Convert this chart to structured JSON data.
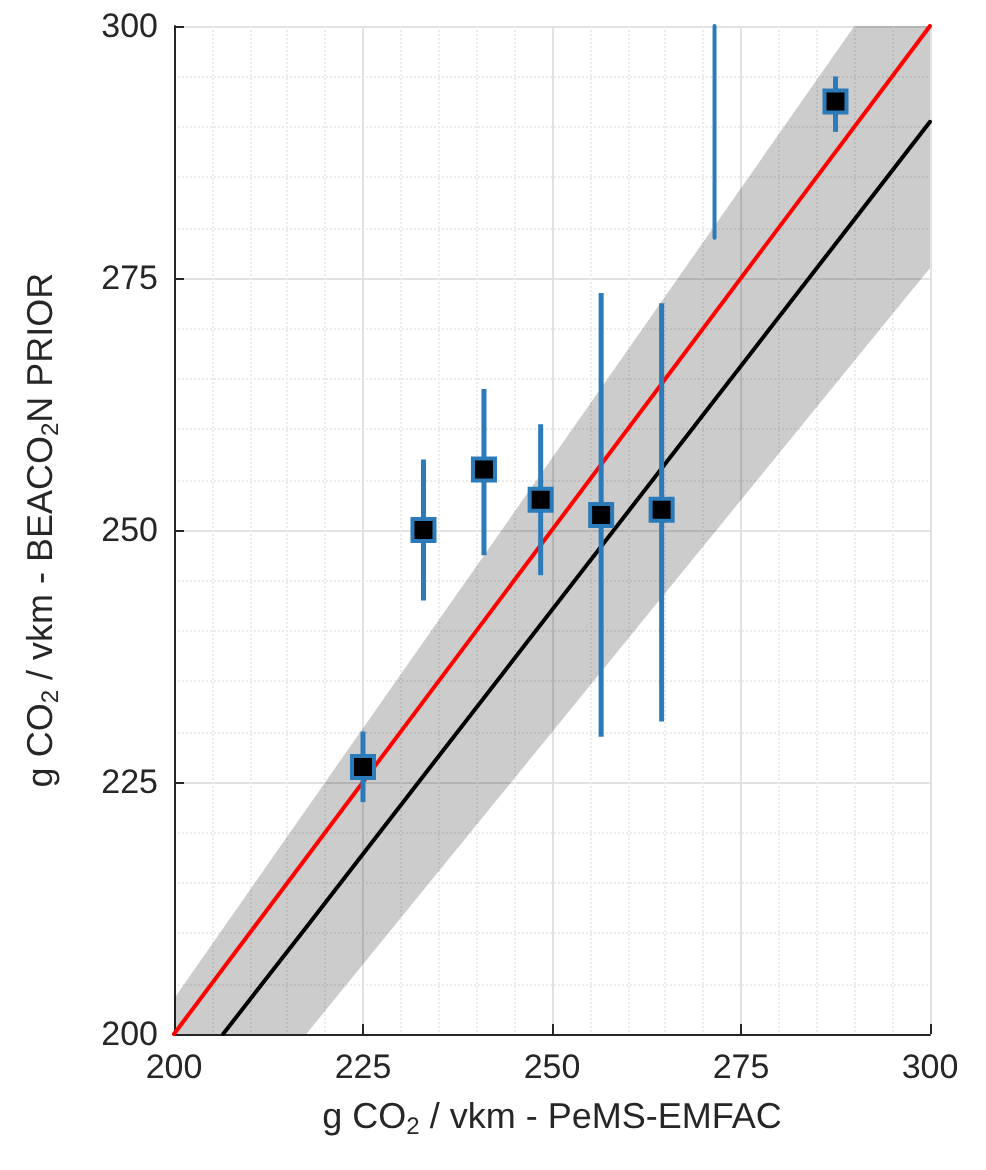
{
  "chart_data": {
    "type": "scatter",
    "xlabel": "g CO$_{2}$ / vkm - PeMS-EMFAC",
    "ylabel": "g CO$_{2}$ / vkm - BEACO$_{2}$N PRIOR",
    "xlim": [
      200,
      300
    ],
    "ylim": [
      200,
      300
    ],
    "xticks": [
      200,
      225,
      250,
      275,
      300
    ],
    "yticks": [
      200,
      225,
      250,
      275,
      300
    ],
    "grid": true,
    "series": [
      {
        "type": "line",
        "color": "#000000",
        "x": [
          200,
          206.5,
          217.5,
          290,
          300
        ],
        "values": [
          null,
          200,
          210.6,
          280.8,
          290.5
        ],
        "lower": [
          200,
          200,
          200,
          266.8,
          276
        ],
        "upper": [
          203.5,
          210.5,
          222.3,
          300,
          300
        ],
        "line_style": "solid"
      },
      {
        "type": "line",
        "color": "#ff0000",
        "x": [
          200,
          300
        ],
        "values": [
          200,
          300
        ],
        "line_style": "solid"
      },
      {
        "type": "line",
        "color": "#2b7bba",
        "x": [
          271.5,
          271.5
        ],
        "values": [
          279,
          300
        ],
        "line_style": "solid"
      },
      {
        "color": "#2b7bba",
        "marker": "square",
        "x": [
          225,
          233,
          241,
          248.5,
          256.5,
          264.5,
          287.5
        ],
        "values": [
          226.5,
          250,
          256,
          253,
          251.5,
          252,
          292.5
        ],
        "errors": [
          [
            223,
            230
          ],
          [
            243,
            257
          ],
          [
            247.5,
            264
          ],
          [
            245.5,
            260.5
          ],
          [
            229.5,
            273.5
          ],
          [
            231,
            272.5
          ],
          [
            289.5,
            295
          ]
        ]
      }
    ]
  }
}
